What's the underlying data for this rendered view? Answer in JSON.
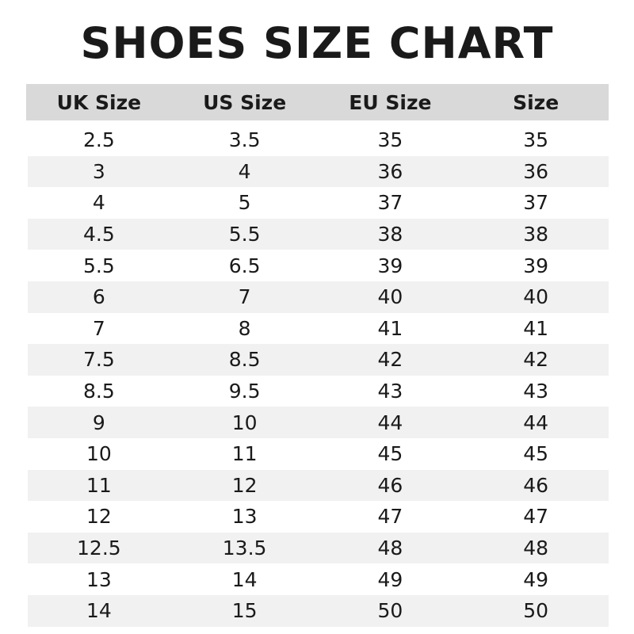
{
  "title": "SHOES SIZE CHART",
  "columns": [
    "UK Size",
    "US Size",
    "EU Size",
    "Size"
  ],
  "rows": [
    [
      "2.5",
      "3.5",
      "35",
      "35"
    ],
    [
      "3",
      "4",
      "36",
      "36"
    ],
    [
      "4",
      "5",
      "37",
      "37"
    ],
    [
      "4.5",
      "5.5",
      "38",
      "38"
    ],
    [
      "5.5",
      "6.5",
      "39",
      "39"
    ],
    [
      "6",
      "7",
      "40",
      "40"
    ],
    [
      "7",
      "8",
      "41",
      "41"
    ],
    [
      "7.5",
      "8.5",
      "42",
      "42"
    ],
    [
      "8.5",
      "9.5",
      "43",
      "43"
    ],
    [
      "9",
      "10",
      "44",
      "44"
    ],
    [
      "10",
      "11",
      "45",
      "45"
    ],
    [
      "11",
      "12",
      "46",
      "46"
    ],
    [
      "12",
      "13",
      "47",
      "47"
    ],
    [
      "12.5",
      "13.5",
      "48",
      "48"
    ],
    [
      "13",
      "14",
      "49",
      "49"
    ],
    [
      "14",
      "15",
      "50",
      "50"
    ]
  ]
}
